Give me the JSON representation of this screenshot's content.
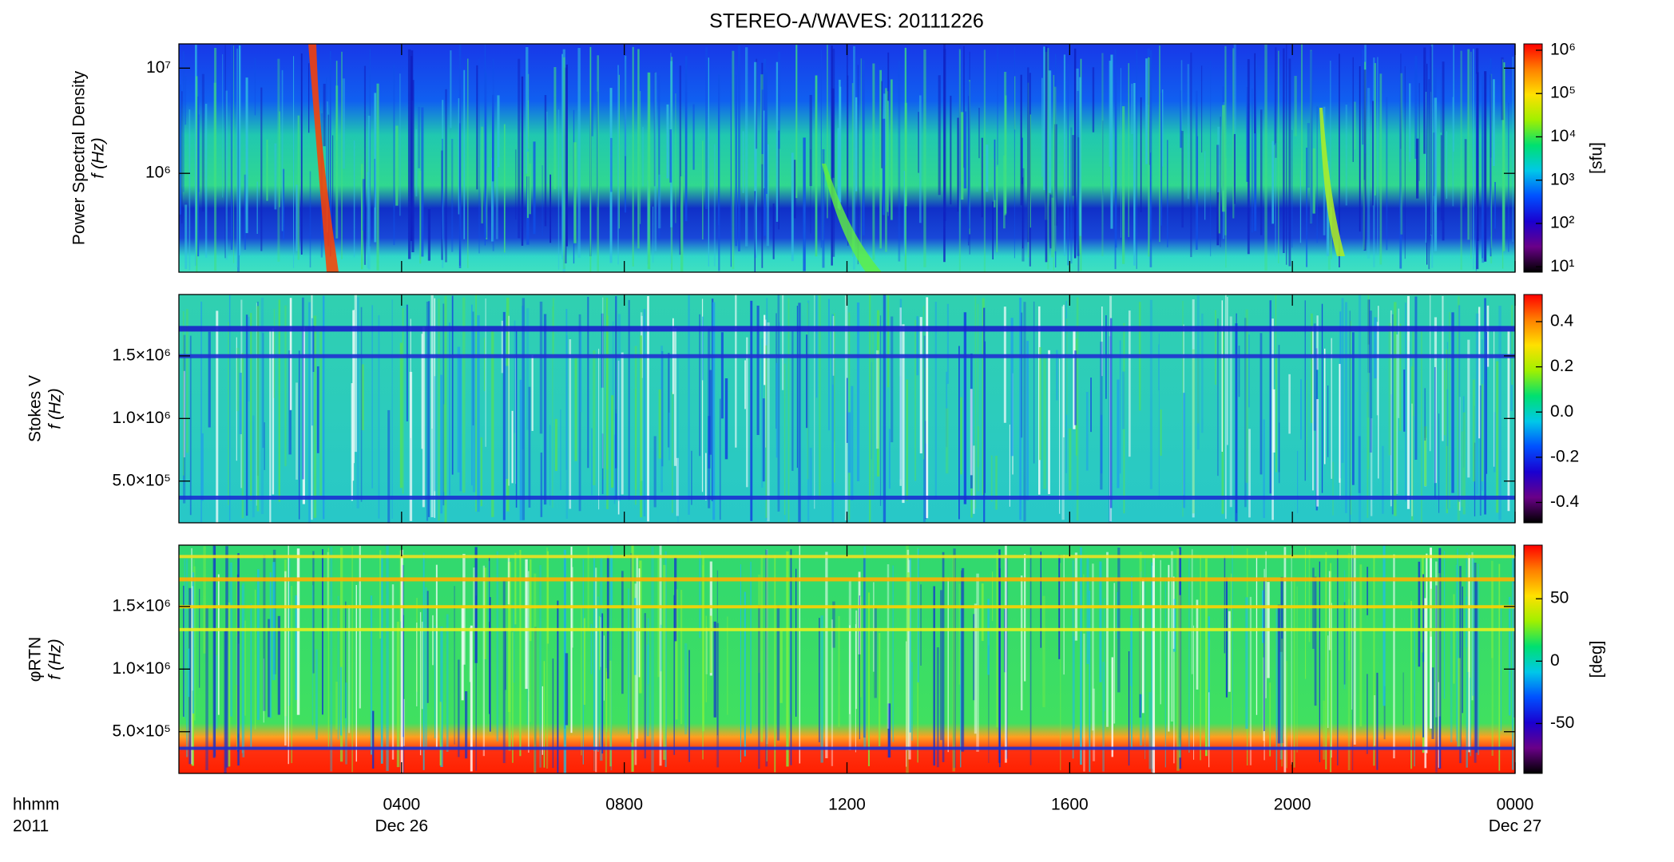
{
  "title": "STEREO-A/WAVES: 20111226",
  "colormap": [
    "#000000",
    "#6a0088",
    "#1a00d0",
    "#0050ff",
    "#00c8e8",
    "#00e070",
    "#a0f000",
    "#ffe000",
    "#ff8000",
    "#ff0000"
  ],
  "chart_data": [
    {
      "type": "heatmap",
      "ylabel": "Power Spectral Density",
      "ylabel2": "f (Hz)",
      "ylog": true,
      "ylim": [
        115000,
        17000000
      ],
      "yticks": [
        {
          "value": 1000000,
          "label": "10⁶"
        },
        {
          "value": 10000000,
          "label": "10⁷"
        }
      ],
      "colorbar": {
        "log": true,
        "lim": [
          7.5,
          1400000
        ],
        "label": "[sfu]",
        "ticks": [
          {
            "value": 10,
            "label": "10¹"
          },
          {
            "value": 100,
            "label": "10²"
          },
          {
            "value": 1000,
            "label": "10³"
          },
          {
            "value": 10000,
            "label": "10⁴"
          },
          {
            "value": 100000,
            "label": "10⁵"
          },
          {
            "value": 1000000,
            "label": "10⁶"
          }
        ]
      }
    },
    {
      "type": "heatmap",
      "ylabel": "Stokes V",
      "ylabel2": "f (Hz)",
      "ylog": false,
      "ylim": [
        167000,
        1990000
      ],
      "yticks": [
        {
          "value": 500000,
          "label": "5.0×10⁵"
        },
        {
          "value": 1000000,
          "label": "1.0×10⁶"
        },
        {
          "value": 1500000,
          "label": "1.5×10⁶"
        }
      ],
      "colorbar": {
        "log": false,
        "lim": [
          -0.49,
          0.52
        ],
        "ticks": [
          -0.4,
          -0.2,
          {
            "value": 0,
            "label": "0.0"
          },
          0.2,
          0.4
        ]
      }
    },
    {
      "type": "heatmap",
      "ylabel": "φRTN",
      "ylabel2": "f (Hz)",
      "ylog": false,
      "ylim": [
        167000,
        1990000
      ],
      "yticks": [
        {
          "value": 500000,
          "label": "5.0×10⁵"
        },
        {
          "value": 1000000,
          "label": "1.0×10⁶"
        },
        {
          "value": 1500000,
          "label": "1.5×10⁶"
        }
      ],
      "colorbar": {
        "log": false,
        "lim": [
          -90,
          93
        ],
        "label": "[deg]",
        "ticks": [
          -50,
          0,
          50
        ]
      },
      "xlim": [
        0,
        24
      ],
      "xticks": [
        {
          "value": 4,
          "label": "0400"
        },
        {
          "value": 8,
          "label": "0800"
        },
        {
          "value": 12,
          "label": "1200"
        },
        {
          "value": 16,
          "label": "1600"
        },
        {
          "value": 20,
          "label": "2000"
        },
        {
          "value": 24,
          "label": "0000"
        }
      ],
      "xdates": [
        {
          "value": 4,
          "label": "Dec 26"
        },
        {
          "value": 24,
          "label": "Dec 27"
        }
      ],
      "xlabel": "hhmm",
      "xlabel2": "2011"
    }
  ]
}
